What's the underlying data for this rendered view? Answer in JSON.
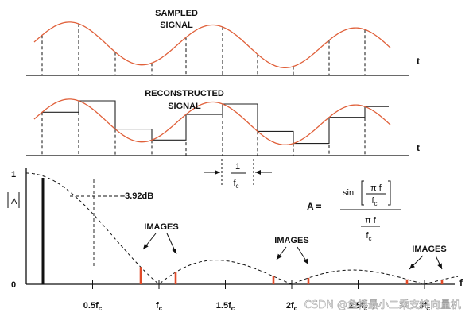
{
  "panel_top": {
    "title_line1": "SAMPLED",
    "title_line2": "SIGNAL",
    "time_axis_label": "t"
  },
  "panel_middle": {
    "title_line1": "RECONSTRUCTED",
    "title_line2": "SIGNAL",
    "time_axis_label": "t",
    "interval_num": "1",
    "interval_den": "f",
    "interval_den_sub": "c"
  },
  "panel_bottom": {
    "y_axis_label": "A",
    "y_tick_top": "1",
    "y_tick_bottom": "0",
    "freq_axis_label": "f",
    "attenuation_label": "–3.92dB",
    "images_label": "IMAGES",
    "formula": {
      "lhs": "A =",
      "num_fn": "sin",
      "num_inner_num": "π f",
      "num_inner_den": "f",
      "num_inner_den_sub": "c",
      "den_num": "π f",
      "den_den": "f",
      "den_den_sub": "c"
    },
    "x_ticks": [
      {
        "main": "0.5f",
        "sub": "c"
      },
      {
        "main": "f",
        "sub": "c"
      },
      {
        "main": "1.5f",
        "sub": "c"
      },
      {
        "main": "2f",
        "sub": "c"
      },
      {
        "main": "2.5f",
        "sub": "c"
      },
      {
        "main": "3f",
        "sub": "c"
      }
    ]
  },
  "watermark": "CSDN @鱼棒最小二乘支持向量机",
  "colors": {
    "signal": "#e0603a",
    "image_bar": "#e04a28",
    "ink": "#111111"
  }
}
